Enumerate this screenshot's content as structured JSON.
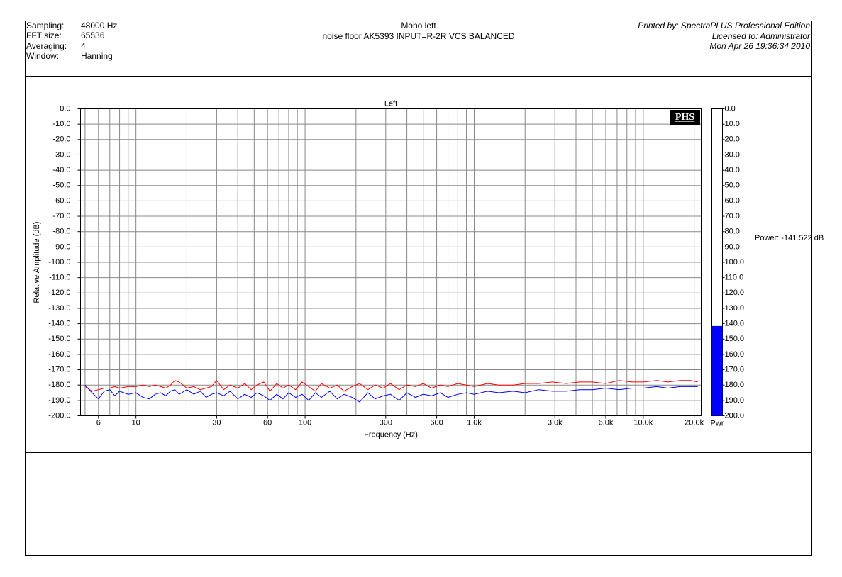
{
  "header": {
    "fields": [
      [
        "Sampling:",
        "48000 Hz"
      ],
      [
        "FFT size:",
        "65536"
      ],
      [
        "Averaging:",
        "4"
      ],
      [
        "Window:",
        "Hanning"
      ]
    ],
    "title": "Mono left",
    "subtitle": "noise floor AK5393 INPUT=R-2R VCS BALANCED",
    "printed_by": "Printed by: SpectraPLUS Professional Edition",
    "licensed_to": "Licensed to: Administrator",
    "date": "Mon Apr 26 19:36:34 2010"
  },
  "chart_data": [
    {
      "type": "line",
      "title": "Left",
      "logo": "PHS",
      "x_label": "Frequency (Hz)",
      "y_label": "Relative Amplitude (dB)",
      "xlog": true,
      "grid": true,
      "xlim": [
        4.7,
        22000
      ],
      "ylim": [
        -200,
        0
      ],
      "xticks": [
        6,
        10,
        30,
        60,
        100,
        300,
        600,
        {
          "value": 1000,
          "label": "1.0k"
        },
        {
          "value": 3000,
          "label": "3.0k"
        },
        {
          "value": 6000,
          "label": "6.0k"
        },
        {
          "value": 10000,
          "label": "10.0k"
        },
        {
          "value": 20000,
          "label": "20.0k"
        }
      ],
      "xminor": [
        5,
        7,
        8,
        9,
        20,
        40,
        50,
        70,
        80,
        90,
        200,
        400,
        500,
        700,
        800,
        900,
        2000,
        4000,
        5000,
        7000,
        8000,
        9000
      ],
      "yticks": [
        {
          "value": 0,
          "label": "0.0"
        },
        {
          "value": -10,
          "label": "-10.0"
        },
        {
          "value": -20,
          "label": "-20.0"
        },
        {
          "value": -30,
          "label": "-30.0"
        },
        {
          "value": -40,
          "label": "-40.0"
        },
        {
          "value": -50,
          "label": "-50.0"
        },
        {
          "value": -60,
          "label": "-60.0"
        },
        {
          "value": -70,
          "label": "-70.0"
        },
        {
          "value": -80,
          "label": "-80.0"
        },
        {
          "value": -90,
          "label": "-90.0"
        },
        {
          "value": -100,
          "label": "-100.0"
        },
        {
          "value": -110,
          "label": "-110.0"
        },
        {
          "value": -120,
          "label": "-120.0"
        },
        {
          "value": -130,
          "label": "-130.0"
        },
        {
          "value": -140,
          "label": "-140.0"
        },
        {
          "value": -150,
          "label": "-150.0"
        },
        {
          "value": -160,
          "label": "-160.0"
        },
        {
          "value": -170,
          "label": "-170.0"
        },
        {
          "value": -180,
          "label": "-180.0"
        },
        {
          "value": -190,
          "label": "-190.0"
        },
        {
          "value": -200,
          "label": "-200.0"
        }
      ],
      "x": [
        5,
        5.5,
        6,
        6.5,
        7,
        7.5,
        8,
        9,
        10,
        11,
        12,
        13,
        14,
        15,
        16,
        17,
        18,
        20,
        22,
        24,
        26,
        28,
        30,
        33,
        36,
        40,
        44,
        48,
        52,
        57,
        62,
        68,
        74,
        80,
        88,
        96,
        105,
        115,
        125,
        140,
        155,
        170,
        190,
        210,
        235,
        260,
        290,
        320,
        360,
        400,
        450,
        500,
        560,
        630,
        700,
        800,
        900,
        1000,
        1200,
        1400,
        1700,
        2000,
        2400,
        2900,
        3500,
        4200,
        5000,
        6000,
        7200,
        8600,
        10000,
        12000,
        14000,
        16500,
        19000,
        21000
      ],
      "series": [
        {
          "color": "#ff0000",
          "values": [
            -181,
            -184,
            -183,
            -182,
            -182,
            -181,
            -182,
            -181,
            -181,
            -180,
            -181,
            -180,
            -181,
            -182,
            -180,
            -177,
            -178,
            -182,
            -181,
            -183,
            -182,
            -181,
            -177,
            -183,
            -180,
            -182,
            -179,
            -183,
            -180,
            -178,
            -184,
            -179,
            -182,
            -180,
            -183,
            -178,
            -181,
            -184,
            -179,
            -182,
            -180,
            -184,
            -181,
            -179,
            -183,
            -180,
            -182,
            -179,
            -183,
            -180,
            -181,
            -179,
            -182,
            -180,
            -181,
            -179,
            -180,
            -181,
            -179,
            -180,
            -180,
            -179,
            -179,
            -178,
            -179,
            -178,
            -178,
            -179,
            -177,
            -178,
            -178,
            -177,
            -178,
            -177,
            -177,
            -178
          ]
        },
        {
          "color": "#0000ff",
          "values": [
            -180,
            -185,
            -189,
            -184,
            -183,
            -187,
            -184,
            -186,
            -185,
            -188,
            -189,
            -186,
            -185,
            -187,
            -184,
            -183,
            -186,
            -183,
            -186,
            -184,
            -188,
            -186,
            -185,
            -187,
            -184,
            -189,
            -186,
            -188,
            -185,
            -187,
            -190,
            -186,
            -189,
            -185,
            -188,
            -186,
            -190,
            -185,
            -188,
            -184,
            -189,
            -186,
            -188,
            -191,
            -185,
            -189,
            -187,
            -186,
            -190,
            -185,
            -188,
            -186,
            -187,
            -185,
            -188,
            -186,
            -185,
            -186,
            -184,
            -185,
            -184,
            -185,
            -183,
            -184,
            -184,
            -183,
            -183,
            -182,
            -183,
            -182,
            -182,
            -181,
            -182,
            -181,
            -181,
            -181
          ]
        }
      ]
    },
    {
      "type": "bar",
      "categories": [
        "Pwr"
      ],
      "values": [
        -141.522
      ],
      "value_labels": [
        "Power: -141.522 dB"
      ],
      "color": "#0000ff",
      "ylim": [
        -200,
        0
      ],
      "yticks": [
        {
          "value": 0,
          "label": "0.0"
        },
        {
          "value": -10,
          "label": "10.0"
        },
        {
          "value": -20,
          "label": "20.0"
        },
        {
          "value": -30,
          "label": "30.0"
        },
        {
          "value": -40,
          "label": "40.0"
        },
        {
          "value": -50,
          "label": "50.0"
        },
        {
          "value": -60,
          "label": "60.0"
        },
        {
          "value": -70,
          "label": "70.0"
        },
        {
          "value": -80,
          "label": "80.0"
        },
        {
          "value": -90,
          "label": "90.0"
        },
        {
          "value": -100,
          "label": "100.0"
        },
        {
          "value": -110,
          "label": "110.0"
        },
        {
          "value": -120,
          "label": "120.0"
        },
        {
          "value": -130,
          "label": "130.0"
        },
        {
          "value": -140,
          "label": "140.0"
        },
        {
          "value": -150,
          "label": "150.0"
        },
        {
          "value": -160,
          "label": "160.0"
        },
        {
          "value": -170,
          "label": "170.0"
        },
        {
          "value": -180,
          "label": "180.0"
        },
        {
          "value": -190,
          "label": "190.0"
        },
        {
          "value": -200,
          "label": "200.0"
        }
      ]
    }
  ]
}
